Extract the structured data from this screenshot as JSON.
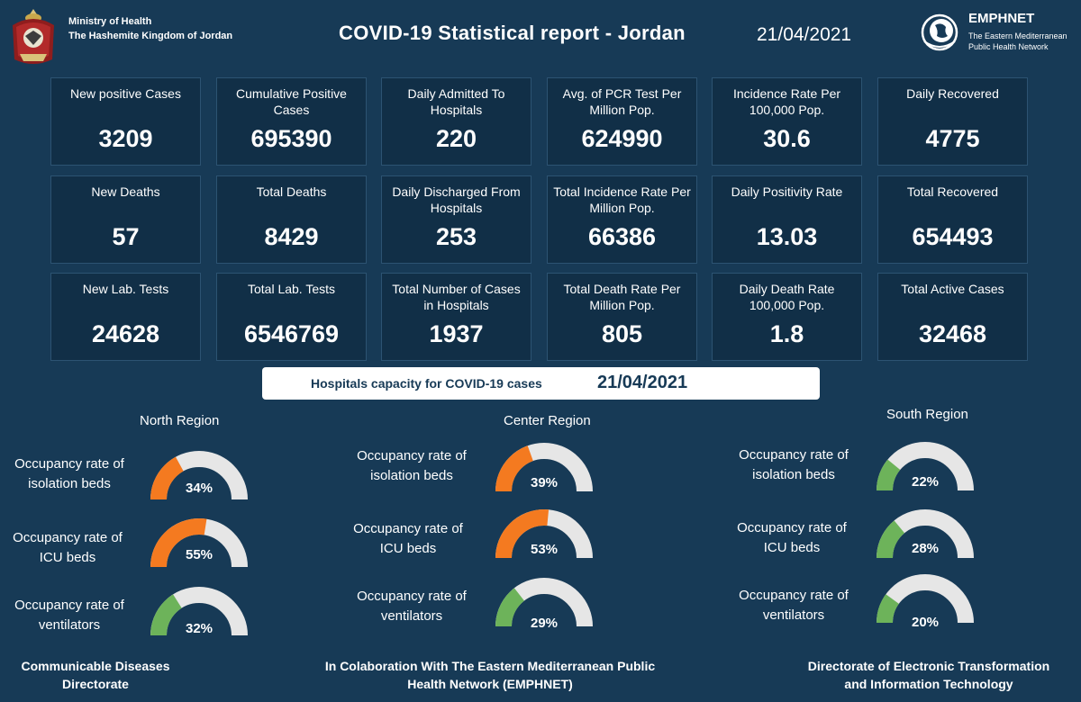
{
  "header": {
    "ministry_line1": "Ministry of Health",
    "ministry_line2": "The Hashemite Kingdom of Jordan",
    "title": "COVID-19 Statistical report - Jordan",
    "date": "21/04/2021",
    "org_name": "EMPHNET",
    "org_sub1": "The Eastern Mediterranean",
    "org_sub2": "Public Health Network"
  },
  "stats": [
    [
      {
        "label": "New positive Cases",
        "value": "3209"
      },
      {
        "label": "Cumulative  Positive Cases",
        "value": "695390"
      },
      {
        "label": "Daily Admitted To Hospitals",
        "value": "220"
      },
      {
        "label": "Avg. of PCR Test Per Million Pop.",
        "value": "624990"
      },
      {
        "label": "Incidence Rate Per 100,000 Pop.",
        "value": "30.6"
      },
      {
        "label": "Daily Recovered",
        "value": "4775"
      }
    ],
    [
      {
        "label": "New Deaths",
        "value": "57"
      },
      {
        "label": "Total Deaths",
        "value": "8429"
      },
      {
        "label": "Daily Discharged From Hospitals",
        "value": "253"
      },
      {
        "label": "Total Incidence Rate Per Million Pop.",
        "value": "66386"
      },
      {
        "label": "Daily Positivity Rate",
        "value": "13.03"
      },
      {
        "label": "Total Recovered",
        "value": "654493"
      }
    ],
    [
      {
        "label": "New Lab. Tests",
        "value": "24628"
      },
      {
        "label": "Total Lab. Tests",
        "value": "6546769"
      },
      {
        "label": "Total Number of Cases in Hospitals",
        "value": "1937"
      },
      {
        "label": "Total Death Rate Per Million Pop.",
        "value": "805"
      },
      {
        "label": "Daily Death Rate 100,000 Pop.",
        "value": "1.8"
      },
      {
        "label": "Total Active Cases",
        "value": "32468"
      }
    ]
  ],
  "capacity": {
    "label": "Hospitals capacity for COVID-19 cases",
    "date": "21/04/2021"
  },
  "regions": [
    {
      "name": "North Region",
      "rows": [
        {
          "label1": "Occupancy rate of",
          "label2": "isolation beds",
          "pct": 34,
          "pct_text": "34%",
          "color": "#f47a20"
        },
        {
          "label1": "Occupancy rate of",
          "label2": "ICU beds",
          "pct": 55,
          "pct_text": "55%",
          "color": "#f47a20"
        },
        {
          "label1": "Occupancy rate of",
          "label2": "ventilators",
          "pct": 32,
          "pct_text": "32%",
          "color": "#6db35a"
        }
      ]
    },
    {
      "name": "Center Region",
      "rows": [
        {
          "label1": "Occupancy rate of",
          "label2": "isolation beds",
          "pct": 39,
          "pct_text": "39%",
          "color": "#f47a20"
        },
        {
          "label1": "Occupancy rate of",
          "label2": "ICU beds",
          "pct": 53,
          "pct_text": "53%",
          "color": "#f47a20"
        },
        {
          "label1": "Occupancy rate of",
          "label2": "ventilators",
          "pct": 29,
          "pct_text": "29%",
          "color": "#6db35a"
        }
      ]
    },
    {
      "name": "South Region",
      "rows": [
        {
          "label1": "Occupancy rate of",
          "label2": "isolation beds",
          "pct": 22,
          "pct_text": "22%",
          "color": "#6db35a"
        },
        {
          "label1": "Occupancy rate of",
          "label2": "ICU beds",
          "pct": 28,
          "pct_text": "28%",
          "color": "#6db35a"
        },
        {
          "label1": "Occupancy rate of",
          "label2": "ventilators",
          "pct": 20,
          "pct_text": "20%",
          "color": "#6db35a"
        }
      ]
    }
  ],
  "gauge_track_color": "#e6e6e6",
  "footer": {
    "left1": "Communicable Diseases",
    "left2": "Directorate",
    "center1": "In Colaboration With The Eastern Mediterranean Public",
    "center2": "Health Network (EMPHNET)",
    "right1": "Directorate of Electronic Transformation",
    "right2": "and  Information Technology"
  }
}
